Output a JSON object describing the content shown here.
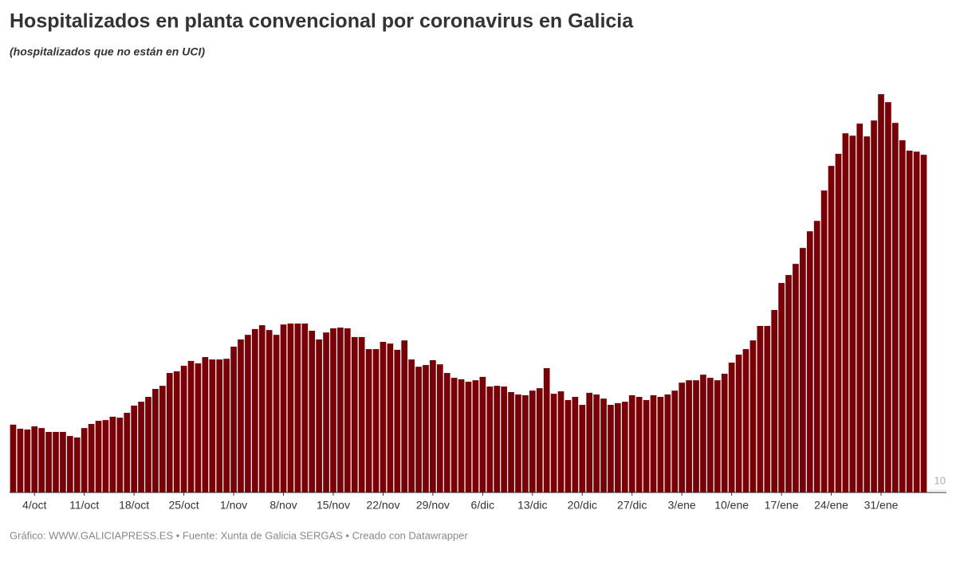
{
  "chart_data": {
    "type": "bar",
    "title": "Hospitalizados en planta convencional por coronavirus en Galicia",
    "subtitle": "(hospitalizados que no están en UCI)",
    "footer": "Gráfico: WWW.GALICIAPRESS.ES • Fuente: Xunta de Galicia SERGAS • Creado con Datawrapper",
    "color": "#7b0006",
    "ylim": [
      0,
      1710
    ],
    "yticks": [
      10
    ],
    "categories": [
      null,
      null,
      null,
      "4/oct",
      null,
      null,
      null,
      null,
      null,
      null,
      "11/oct",
      null,
      null,
      null,
      null,
      null,
      null,
      "18/oct",
      null,
      null,
      null,
      null,
      null,
      null,
      "25/oct",
      null,
      null,
      null,
      null,
      null,
      null,
      "1/nov",
      null,
      null,
      null,
      null,
      null,
      null,
      "8/nov",
      null,
      null,
      null,
      null,
      null,
      null,
      "15/nov",
      null,
      null,
      null,
      null,
      null,
      null,
      "22/nov",
      null,
      null,
      null,
      null,
      null,
      null,
      "29/nov",
      null,
      null,
      null,
      null,
      null,
      null,
      "6/dic",
      null,
      null,
      null,
      null,
      null,
      null,
      "13/dic",
      null,
      null,
      null,
      null,
      null,
      null,
      "20/dic",
      null,
      null,
      null,
      null,
      null,
      null,
      "27/dic",
      null,
      null,
      null,
      null,
      null,
      null,
      "3/ene",
      null,
      null,
      null,
      null,
      null,
      null,
      "10/ene",
      null,
      null,
      null,
      null,
      null,
      null,
      "17/ene",
      null,
      null,
      null,
      null,
      null,
      null,
      "24/ene",
      null,
      null,
      null,
      null,
      null,
      null,
      "31/ene",
      null,
      null,
      null,
      null,
      null,
      null
    ],
    "values": [
      281,
      264,
      261,
      274,
      267,
      251,
      251,
      251,
      234,
      228,
      267,
      284,
      297,
      300,
      314,
      310,
      330,
      360,
      376,
      396,
      429,
      442,
      495,
      502,
      525,
      545,
      535,
      561,
      551,
      551,
      554,
      604,
      634,
      653,
      677,
      693,
      673,
      653,
      696,
      700,
      700,
      700,
      670,
      634,
      663,
      680,
      683,
      680,
      644,
      644,
      594,
      594,
      624,
      617,
      591,
      630,
      551,
      521,
      528,
      548,
      531,
      495,
      475,
      469,
      459,
      465,
      479,
      439,
      442,
      439,
      416,
      406,
      403,
      422,
      432,
      515,
      409,
      419,
      383,
      396,
      363,
      413,
      406,
      389,
      363,
      370,
      376,
      403,
      396,
      383,
      403,
      396,
      406,
      422,
      455,
      465,
      465,
      488,
      475,
      465,
      492,
      538,
      571,
      594,
      630,
      690,
      690,
      756,
      868,
      901,
      947,
      1013,
      1082,
      1125,
      1251,
      1353,
      1403,
      1488,
      1478,
      1528,
      1475,
      1541,
      1650,
      1617,
      1531,
      1459,
      1416,
      1412,
      1399
    ]
  }
}
